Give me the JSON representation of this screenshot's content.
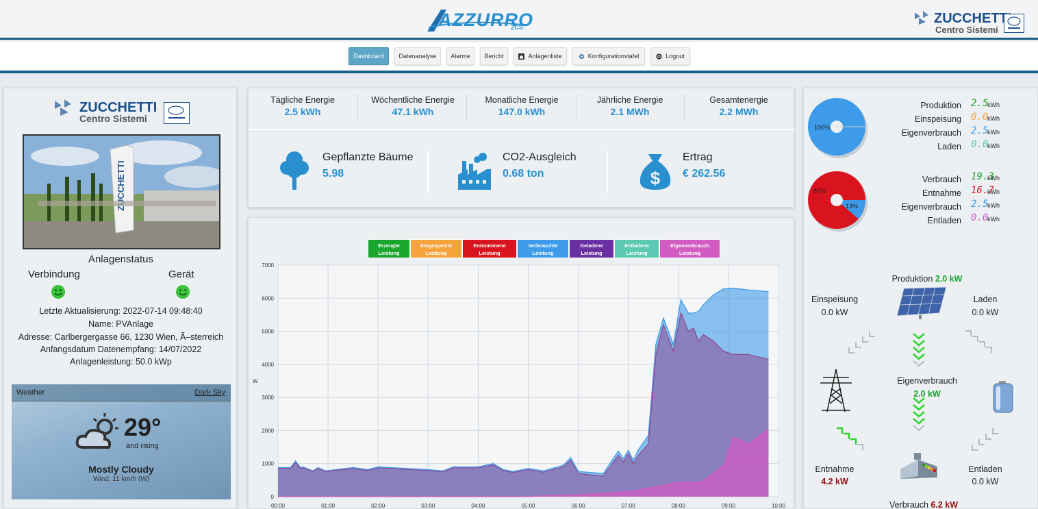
{
  "header": {
    "brand": "AZZURRO",
    "brand_sub": "ZCS",
    "company": "ZUCCHETTI",
    "company_sub": "Centro Sistemi"
  },
  "nav": [
    {
      "label": "Dashboard",
      "active": true,
      "icon": ""
    },
    {
      "label": "Datenanalyse",
      "active": false,
      "icon": ""
    },
    {
      "label": "Alarme",
      "active": false,
      "icon": ""
    },
    {
      "label": "Bericht",
      "active": false,
      "icon": ""
    },
    {
      "label": "Anlagenliste",
      "active": false,
      "icon": "home-icon"
    },
    {
      "label": "Konfigurationstafel",
      "active": false,
      "icon": "cog-icon"
    },
    {
      "label": "Logout",
      "active": false,
      "icon": "power-icon"
    }
  ],
  "left": {
    "logo_name": "ZUCCHETTI",
    "logo_sub": "Centro Sistemi",
    "status_title": "Anlagenstatus",
    "connection_label": "Verbindung",
    "device_label": "Gerät",
    "last_update": "Letzte Aktualisierung: 2022-07-14 09:48:40",
    "name": "Name: PVAnlage",
    "address": "Adresse: Carlbergergasse 66, 1230 Wien, Ã–sterreich",
    "start_date": "Anfangsdatum Datenempfang: 14/07/2022",
    "power": "Anlagenleistung: 50.0 kWp"
  },
  "weather": {
    "title": "Weather",
    "source": "Dark Sky",
    "temp": "29°",
    "trend": "and rising",
    "condition": "Mostly Cloudy",
    "wind": "Wind: 11 km/h (W)"
  },
  "energy": [
    {
      "title": "Tägliche Energie",
      "value": "2.5 kWh"
    },
    {
      "title": "Wöchentliche Energie",
      "value": "47.1 kWh"
    },
    {
      "title": "Monatliche Energie",
      "value": "147.0 kWh"
    },
    {
      "title": "Jährliche Energie",
      "value": "2.1 MWh"
    },
    {
      "title": "Gesamtenergie",
      "value": "2.2 MWh"
    }
  ],
  "eco": [
    {
      "title": "Gepflanzte Bäume",
      "value": "5.98",
      "icon": "tree-icon"
    },
    {
      "title": "CO2-Ausgleich",
      "value": "0.68 ton",
      "icon": "factory-icon"
    },
    {
      "title": "Ertrag",
      "value": "€ 262.56",
      "icon": "money-bag-icon"
    }
  ],
  "legend": [
    {
      "label": "Erzeugte Leistung",
      "color": "#1aa52f"
    },
    {
      "label": "Eingespeiste Leistung",
      "color": "#f5a33c"
    },
    {
      "label": "Entnommene Leistung",
      "color": "#d9141e"
    },
    {
      "label": "Verbrauchte Leistung",
      "color": "#3d9be9"
    },
    {
      "label": "Geladene Leistung",
      "color": "#6a2fa0"
    },
    {
      "label": "Entladene Leistung",
      "color": "#5cc9b2"
    },
    {
      "label": "Eigenverbrauch Leistung",
      "color": "#d35cc3"
    }
  ],
  "chart_data": {
    "type": "area",
    "ylabel": "W",
    "ylim": [
      0,
      7000
    ],
    "yticks": [
      0,
      1000,
      2000,
      3000,
      4000,
      5000,
      6000,
      7000
    ],
    "xticks": [
      "00:00",
      "01:00",
      "02:00",
      "03:00",
      "04:00",
      "05:00",
      "06:00",
      "07:00",
      "08:00",
      "09:00",
      "10:00"
    ],
    "x": [
      0.0,
      0.25,
      0.35,
      0.45,
      0.5,
      0.7,
      0.8,
      0.95,
      1.5,
      1.8,
      2.0,
      2.5,
      3.0,
      3.3,
      3.5,
      4.0,
      4.3,
      4.5,
      4.7,
      5.0,
      5.3,
      5.7,
      5.85,
      6.0,
      6.5,
      6.8,
      6.9,
      7.0,
      7.1,
      7.2,
      7.4,
      7.55,
      7.7,
      7.9,
      8.05,
      8.2,
      8.3,
      8.4,
      8.5,
      8.7,
      8.9,
      9.1,
      9.4,
      9.8
    ],
    "series": [
      {
        "name": "Verbrauchte Leistung",
        "color": "#3d9be9",
        "values": [
          880,
          880,
          1080,
          880,
          900,
          780,
          880,
          780,
          880,
          820,
          900,
          860,
          820,
          780,
          900,
          900,
          1000,
          820,
          760,
          850,
          780,
          950,
          1180,
          760,
          700,
          1380,
          1150,
          1400,
          1100,
          1420,
          1850,
          4600,
          5400,
          4600,
          5950,
          5550,
          5550,
          5600,
          5800,
          6100,
          6280,
          6300,
          6250,
          6200
        ]
      },
      {
        "name": "Eigenverbrauch Leistung",
        "color": "#d35cc3",
        "values": [
          0,
          0,
          0,
          0,
          0,
          0,
          0,
          0,
          0,
          0,
          0,
          0,
          0,
          0,
          0,
          0,
          0,
          0,
          0,
          0,
          20,
          40,
          50,
          60,
          100,
          140,
          150,
          160,
          180,
          200,
          260,
          300,
          340,
          420,
          450,
          430,
          460,
          420,
          480,
          700,
          950,
          1800,
          1600,
          2050
        ]
      },
      {
        "name": "Entnommene Leistung",
        "color": "#8c4c96",
        "values": [
          850,
          850,
          1030,
          850,
          870,
          760,
          850,
          760,
          850,
          790,
          870,
          830,
          790,
          750,
          870,
          870,
          960,
          790,
          730,
          820,
          740,
          900,
          1100,
          700,
          620,
          1250,
          1050,
          1300,
          1000,
          1250,
          1600,
          4300,
          5200,
          4400,
          5550,
          5000,
          5100,
          4700,
          4900,
          4700,
          4400,
          4300,
          4300,
          4150
        ]
      }
    ]
  },
  "summary": {
    "prod": [
      {
        "label": "Produktion",
        "value": "2.5",
        "unit": "kWh",
        "color": "#1aa52f"
      },
      {
        "label": "Einspeisung",
        "value": "0.0",
        "unit": "kWh",
        "color": "#f5a33c"
      },
      {
        "label": "Eigenverbrauch",
        "value": "2.5",
        "unit": "kWh",
        "color": "#3d9be9"
      },
      {
        "label": "Laden",
        "value": "0.0",
        "unit": "kWh",
        "color": "#5cc9b2"
      }
    ],
    "cons": [
      {
        "label": "Verbrauch",
        "value": "19.3",
        "unit": "kWh",
        "color": "#1aa52f"
      },
      {
        "label": "Entnahme",
        "value": "16.7",
        "unit": "kWh",
        "color": "#d9141e"
      },
      {
        "label": "Eigenverbrauch",
        "value": "2.5",
        "unit": "kWh",
        "color": "#3d9be9"
      },
      {
        "label": "Entladen",
        "value": "0.0",
        "unit": "kWh",
        "color": "#d35cc3"
      }
    ],
    "pie1_label": "100%",
    "pie2_label_a": "87%",
    "pie2_label_b": "13%",
    "pie1": [
      {
        "label": "Eigenverbrauch",
        "value": 100
      }
    ],
    "pie2": [
      {
        "label": "Entnahme",
        "value": 87
      },
      {
        "label": "Eigenverbrauch",
        "value": 13
      }
    ]
  },
  "flow": {
    "production_label": "Produktion",
    "production_value": "2.0 kW",
    "feed_label": "Einspeisung",
    "feed_value": "0.0 kW",
    "charge_label": "Laden",
    "charge_value": "0.0 kW",
    "self_label": "Eigenverbrauch",
    "self_value": "2.0 kW",
    "draw_label": "Entnahme",
    "draw_value": "4.2 kW",
    "discharge_label": "Entladen",
    "discharge_value": "0.0 kW",
    "consumption_label": "Verbrauch",
    "consumption_value": "6.2 kW"
  }
}
